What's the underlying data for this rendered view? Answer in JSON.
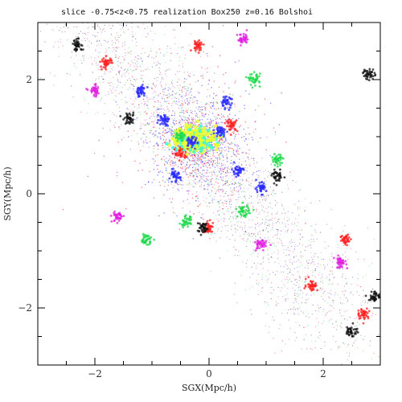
{
  "chart_data": {
    "type": "scatter",
    "title": "slice -0.75<z<0.75 realization Box250 z=0.16 Bolshoi",
    "xlabel": "SGX(Mpc/h)",
    "ylabel": "SGY(Mpc/h)",
    "xlim": [
      -3,
      3
    ],
    "ylim": [
      -3,
      3
    ],
    "xticks": [
      -2,
      0,
      2
    ],
    "yticks": [
      -2,
      0,
      2
    ],
    "xtick_labels": [
      "−2",
      "0",
      "2"
    ],
    "ytick_labels": [
      "−2",
      "0",
      "2"
    ],
    "grid": false,
    "colors": {
      "red": "#ff2020",
      "blue": "#2a2aff",
      "green": "#1fd84a",
      "magenta": "#e020e0",
      "black": "#111111",
      "core_yellow": "#e8ff30",
      "core_cyan": "#30ffd0"
    },
    "series": [
      {
        "color_key": "blue",
        "points": [
          [
            -0.3,
            0.9
          ],
          [
            0.2,
            1.1
          ],
          [
            -0.8,
            1.3
          ],
          [
            0.5,
            0.4
          ],
          [
            -1.2,
            1.8
          ],
          [
            0.9,
            0.1
          ],
          [
            -0.6,
            0.3
          ],
          [
            0.3,
            1.6
          ]
        ]
      },
      {
        "color_key": "red",
        "points": [
          [
            -1.8,
            2.3
          ],
          [
            0.4,
            1.2
          ],
          [
            -0.2,
            2.6
          ],
          [
            2.4,
            -0.8
          ],
          [
            1.8,
            -1.6
          ],
          [
            2.7,
            -2.1
          ],
          [
            0.0,
            -0.6
          ],
          [
            -0.5,
            0.7
          ]
        ]
      },
      {
        "color_key": "green",
        "points": [
          [
            -0.5,
            1.0
          ],
          [
            0.8,
            2.0
          ],
          [
            -1.1,
            -0.8
          ],
          [
            1.2,
            0.6
          ],
          [
            -0.4,
            -0.5
          ],
          [
            0.6,
            -0.3
          ]
        ]
      },
      {
        "color_key": "magenta",
        "points": [
          [
            -2.0,
            1.8
          ],
          [
            0.6,
            2.7
          ],
          [
            -1.6,
            -0.4
          ],
          [
            0.9,
            -0.9
          ],
          [
            2.3,
            -1.2
          ]
        ]
      },
      {
        "color_key": "black",
        "points": [
          [
            -2.3,
            2.6
          ],
          [
            2.8,
            2.1
          ],
          [
            2.9,
            -1.8
          ],
          [
            2.5,
            -2.4
          ],
          [
            -1.4,
            1.3
          ],
          [
            1.2,
            0.3
          ],
          [
            -0.1,
            -0.6
          ]
        ]
      }
    ]
  }
}
